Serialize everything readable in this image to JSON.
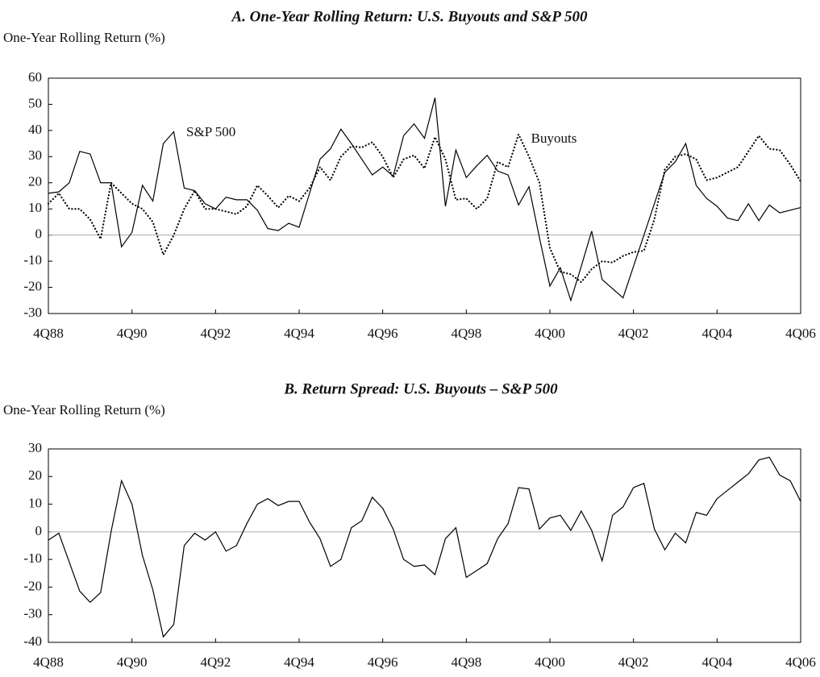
{
  "chart_data": [
    {
      "type": "line",
      "title": "A. One-Year Rolling Return: U.S. Buyouts and S&P 500",
      "y_label": "One-Year Rolling Return (%)",
      "categories": [
        "4Q88",
        null,
        null,
        null,
        null,
        null,
        null,
        null,
        "4Q90",
        null,
        null,
        null,
        null,
        null,
        null,
        null,
        "4Q92",
        null,
        null,
        null,
        null,
        null,
        null,
        null,
        "4Q94",
        null,
        null,
        null,
        null,
        null,
        null,
        null,
        "4Q96",
        null,
        null,
        null,
        null,
        null,
        null,
        null,
        "4Q98",
        null,
        null,
        null,
        null,
        null,
        null,
        null,
        "4Q00",
        null,
        null,
        null,
        null,
        null,
        null,
        null,
        "4Q02",
        null,
        null,
        null,
        null,
        null,
        null,
        null,
        "4Q04",
        null,
        null,
        null,
        null,
        null,
        null,
        null,
        "4Q06"
      ],
      "ylim": [
        -30,
        60
      ],
      "yticks": [
        -30,
        -20,
        -10,
        0,
        10,
        20,
        30,
        40,
        50,
        60
      ],
      "series": [
        {
          "name": "S&P 500",
          "color": "#000000",
          "line_style": "solid",
          "values": [
            16,
            16.5,
            20,
            32,
            31,
            20,
            20,
            -4.5,
            1,
            19,
            13,
            35,
            39.5,
            18,
            17,
            12,
            10,
            14.5,
            13.5,
            13.5,
            9.5,
            2.5,
            1.7,
            4.5,
            3,
            16,
            29,
            33,
            40.5,
            35,
            29,
            23,
            26,
            22.5,
            38,
            42.5,
            37,
            52.5,
            11,
            32.5,
            22,
            26.5,
            30.5,
            24.5,
            23,
            11.5,
            18.5,
            -1,
            -19.5,
            -12.5,
            -25,
            -12,
            1.5,
            -17,
            -20.5,
            -24,
            -12,
            0,
            12,
            24,
            28,
            35,
            19,
            14,
            11,
            6.5,
            5.5,
            12,
            5.5,
            11.5,
            8.5,
            9.5,
            10.5
          ]
        },
        {
          "name": "Buyouts",
          "color": "#000000",
          "line_style": "dotted",
          "values": [
            12,
            16,
            10,
            10,
            6,
            -1.5,
            20,
            16,
            12,
            10,
            5,
            -7.5,
            0,
            10,
            17,
            10,
            10,
            9,
            8,
            11,
            19,
            15,
            10.5,
            15,
            13,
            18,
            26,
            21,
            30,
            34,
            33.5,
            35.5,
            30,
            22,
            29,
            30.5,
            25.5,
            37.5,
            29,
            13.5,
            14,
            10,
            14,
            28,
            26,
            38.5,
            30,
            20,
            -5,
            -14,
            -15,
            -18,
            -13,
            -10,
            -10.5,
            -8,
            -6.5,
            -6,
            6,
            25,
            30,
            31,
            29,
            21,
            22,
            24,
            26,
            32,
            38,
            33,
            32.5,
            27,
            20.5
          ]
        }
      ]
    },
    {
      "type": "line",
      "title": "B. Return Spread: U.S. Buyouts – S&P 500",
      "y_label": "One-Year Rolling Return (%)",
      "categories": [
        "4Q88",
        null,
        null,
        null,
        null,
        null,
        null,
        null,
        "4Q90",
        null,
        null,
        null,
        null,
        null,
        null,
        null,
        "4Q92",
        null,
        null,
        null,
        null,
        null,
        null,
        null,
        "4Q94",
        null,
        null,
        null,
        null,
        null,
        null,
        null,
        "4Q96",
        null,
        null,
        null,
        null,
        null,
        null,
        null,
        "4Q98",
        null,
        null,
        null,
        null,
        null,
        null,
        null,
        "4Q00",
        null,
        null,
        null,
        null,
        null,
        null,
        null,
        "4Q02",
        null,
        null,
        null,
        null,
        null,
        null,
        null,
        "4Q04",
        null,
        null,
        null,
        null,
        null,
        null,
        null,
        "4Q06"
      ],
      "ylim": [
        -40,
        30
      ],
      "yticks": [
        -40,
        -30,
        -20,
        -10,
        0,
        10,
        20,
        30
      ],
      "color": "#000000",
      "values": [
        -3,
        -0.5,
        -11,
        -21.5,
        -25.5,
        -22,
        0,
        18.5,
        10,
        -8.5,
        -21,
        -38,
        -33.5,
        -5,
        -0.5,
        -3,
        0,
        -7,
        -5,
        3,
        10,
        12,
        9.5,
        11,
        11,
        3.5,
        -2.5,
        -12.5,
        -10,
        1.5,
        4,
        12.5,
        8.5,
        1,
        -10,
        -12.5,
        -12,
        -15.5,
        -2.5,
        1.5,
        -16.5,
        -14,
        -11.5,
        -2.5,
        3,
        16,
        15.5,
        1,
        5,
        6,
        0.5,
        7.5,
        0.5,
        -10.5,
        6,
        9,
        16,
        17.5,
        1,
        -6.5,
        -0.5,
        -4,
        7,
        6,
        12,
        15,
        18,
        21,
        26,
        27,
        20.5,
        18.5,
        11
      ]
    }
  ]
}
